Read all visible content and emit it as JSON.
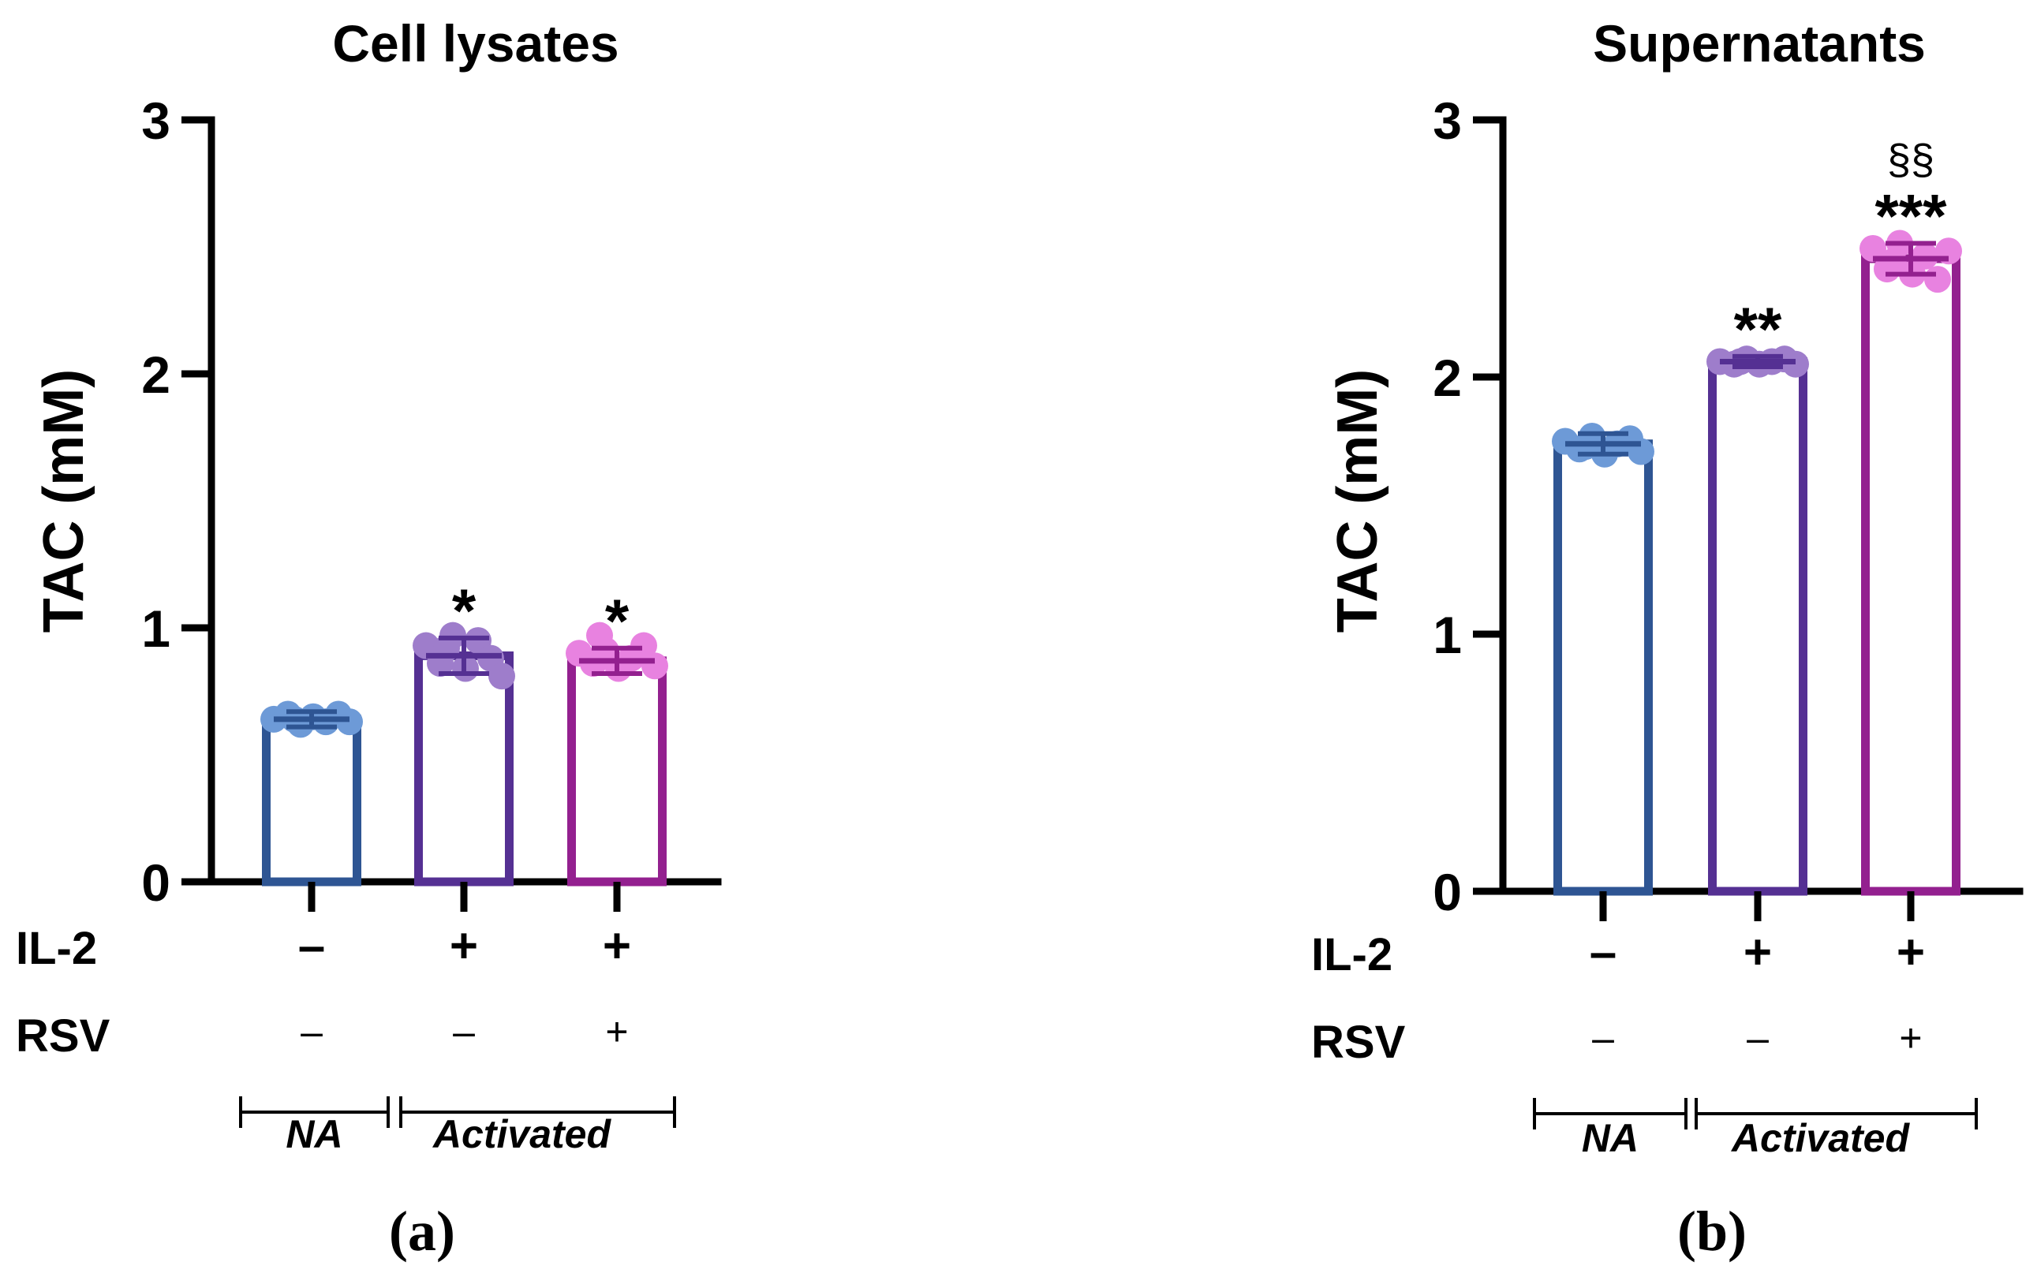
{
  "chart_data": [
    {
      "panel": "(a)",
      "type": "bar",
      "title": "Cell  lysates",
      "ylabel": "TAC (mM)",
      "ylim": [
        0,
        3
      ],
      "yticks": [
        "0",
        "1",
        "2",
        "3"
      ],
      "categories": [
        "NA IL-2 − RSV −",
        "Activated IL-2 + RSV −",
        "Activated IL-2 + RSV +"
      ],
      "values": [
        0.64,
        0.89,
        0.87
      ],
      "errors": [
        0.03,
        0.07,
        0.05
      ],
      "bar_colors": [
        "#2e5593",
        "#553093",
        "#93208f"
      ],
      "point_colors": [
        "#6d9ad7",
        "#9e7dcb",
        "#e882e0"
      ],
      "points": [
        [
          0.64,
          0.66,
          0.62,
          0.65,
          0.63,
          0.66,
          0.63,
          0.64
        ],
        [
          0.93,
          0.86,
          0.97,
          0.84,
          0.95,
          0.88,
          0.81,
          0.92
        ],
        [
          0.9,
          0.86,
          0.91,
          0.84,
          0.88,
          0.93,
          0.85,
          0.97
        ]
      ],
      "significance": [
        "",
        "*",
        "*"
      ],
      "sig_above": [
        "",
        "",
        ""
      ],
      "il2_label": "IL-2",
      "il2": [
        "–",
        "+",
        "+"
      ],
      "rsv_label": "RSV",
      "rsv": [
        "–",
        "–",
        "+"
      ],
      "group_na": "NA",
      "group_act": "Activated"
    },
    {
      "panel": "(b)",
      "type": "bar",
      "title": "Supernatants",
      "ylabel": "TAC (mM)",
      "ylim": [
        0,
        3
      ],
      "yticks": [
        "0",
        "1",
        "2",
        "3"
      ],
      "categories": [
        "NA IL-2 − RSV −",
        "Activated IL-2 + RSV −",
        "Activated IL-2 + RSV +"
      ],
      "values": [
        1.74,
        2.06,
        2.46
      ],
      "errors": [
        0.04,
        0.02,
        0.06
      ],
      "bar_colors": [
        "#2e5593",
        "#553093",
        "#93208f"
      ],
      "point_colors": [
        "#6d9ad7",
        "#9e7dcb",
        "#e882e0"
      ],
      "points": [
        [
          1.75,
          1.72,
          1.77,
          1.7,
          1.74,
          1.76,
          1.71,
          1.73
        ],
        [
          2.06,
          2.05,
          2.07,
          2.05,
          2.06,
          2.07,
          2.05,
          2.06
        ],
        [
          2.5,
          2.42,
          2.52,
          2.4,
          2.47,
          2.38,
          2.49,
          2.45
        ]
      ],
      "significance": [
        "",
        "**",
        "***"
      ],
      "sig_above": [
        "",
        "",
        "§§"
      ],
      "il2_label": "IL-2",
      "il2": [
        "–",
        "+",
        "+"
      ],
      "rsv_label": "RSV",
      "rsv": [
        "–",
        "–",
        "+"
      ],
      "group_na": "NA",
      "group_act": "Activated"
    }
  ]
}
